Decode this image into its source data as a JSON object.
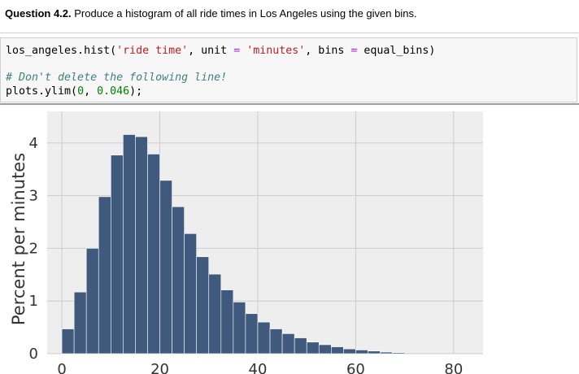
{
  "question": {
    "number": "Question 4.2.",
    "text": "Produce a histogram of all ride times in Los Angeles using the given bins."
  },
  "code": {
    "line1": {
      "t1": "los_angeles.hist(",
      "s1": "'ride time'",
      "t2": ", unit ",
      "op1": "=",
      "t3": " ",
      "s2": "'minutes'",
      "t4": ", bins ",
      "op2": "=",
      "t5": " equal_bins)"
    },
    "comment": "# Don't delete the following line!",
    "line3": {
      "t1": "plots.ylim(",
      "n1": "0",
      "t2": ", ",
      "n2": "0.046",
      "t3": ");"
    }
  },
  "chart_data": {
    "type": "bar",
    "ylabel": "Percent per minutes",
    "xlim": [
      -3,
      86
    ],
    "ylim": [
      0,
      4.6
    ],
    "xticks": [
      0,
      20,
      40,
      60,
      80
    ],
    "yticks": [
      0,
      1,
      2,
      3,
      4
    ],
    "bin_width": 2.5,
    "bins_start": 0,
    "values": [
      0.47,
      1.17,
      2.0,
      2.98,
      3.77,
      4.16,
      4.12,
      3.79,
      3.29,
      2.79,
      2.28,
      1.84,
      1.51,
      1.21,
      0.98,
      0.76,
      0.6,
      0.47,
      0.38,
      0.3,
      0.22,
      0.17,
      0.13,
      0.09,
      0.07,
      0.05,
      0.03,
      0.02
    ],
    "grid": true,
    "colors": {
      "bar": "#405a7d",
      "background": "#eeeeee",
      "grid": "#cccccc"
    }
  }
}
